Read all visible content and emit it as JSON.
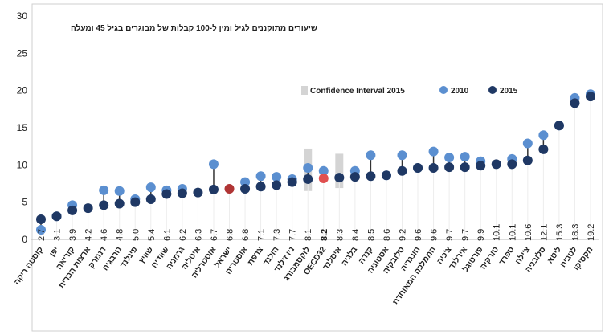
{
  "chart_data": {
    "type": "dot",
    "title": "שיעורים מתוקננים לגיל ומין ל-100 קבלות של מבוגרים בגיל 45 ומעלה",
    "ylim": [
      0,
      30
    ],
    "yticks": [
      0,
      5,
      10,
      15,
      20,
      25,
      30
    ],
    "categories": [
      "קוסטה ריקה",
      "יפן",
      "קוריאה",
      "ארצות הברית",
      "דנמרק",
      "נורבגיה",
      "פינלנד",
      "שוויץ",
      "שוודיה",
      "גרמניה",
      "איטליה",
      "אוסטרליה",
      "ישראל",
      "אוסטריה",
      "צרפת",
      "הולנד",
      "ניו זילנד",
      "לוקסמבורג",
      "OECD32",
      "איסלנד",
      "בלגיה",
      "קנדה",
      "אסטוניה",
      "סלובקיה",
      "הונגריה",
      "הממלכה המאוחדת",
      "צ'כיה",
      "אירלנד",
      "פורטוגל",
      "טורקיה",
      "ספרד",
      "צ'ילה",
      "סלובניה",
      "ליטא",
      "לטביה",
      "מקסיקו"
    ],
    "value_labels": [
      "2.7",
      "3.1",
      "3.9",
      "4.2",
      "4.6",
      "4.8",
      "5.0",
      "5.4",
      "6.1",
      "6.2",
      "6.3",
      "6.7",
      "6.8",
      "6.8",
      "7.1",
      "7.3",
      "7.7",
      "8.1",
      "8.2",
      "8.3",
      "8.4",
      "8.5",
      "8.6",
      "9.2",
      "9.6",
      "9.6",
      "9.7",
      "9.7",
      "9.9",
      "10.1",
      "10.1",
      "10.6",
      "12.1",
      "15.3",
      "18.3",
      "19.2"
    ],
    "series": [
      {
        "name": "2015",
        "color": "#1f3864",
        "values": [
          2.7,
          3.1,
          3.9,
          4.2,
          4.6,
          4.8,
          5.0,
          5.4,
          6.1,
          6.2,
          6.3,
          6.7,
          6.8,
          6.8,
          7.1,
          7.3,
          7.7,
          8.1,
          8.2,
          8.3,
          8.4,
          8.5,
          8.6,
          9.2,
          9.6,
          9.6,
          9.7,
          9.7,
          9.9,
          10.1,
          10.1,
          10.6,
          12.1,
          15.3,
          18.3,
          19.2
        ]
      },
      {
        "name": "2010",
        "color": "#5b8fd0",
        "values": [
          1.3,
          3.1,
          4.6,
          null,
          6.6,
          6.5,
          5.4,
          7.0,
          6.6,
          6.8,
          null,
          10.1,
          null,
          7.7,
          8.5,
          8.4,
          8.1,
          9.6,
          9.2,
          null,
          9.2,
          11.3,
          8.6,
          11.3,
          9.6,
          11.8,
          11.0,
          11.1,
          10.5,
          null,
          10.8,
          12.9,
          14.0,
          15.3,
          19.0,
          19.5
        ]
      }
    ],
    "highlights": {
      "ישראל": "#b03535",
      "OECD32": "#e05050"
    },
    "confidence_interval": {
      "name": "Confidence Interval 2015",
      "color": "#d4d4d4",
      "ranges": [
        {
          "category": "לוקסמבורג",
          "low": 6.5,
          "high": 12.2
        },
        {
          "category": "איסלנד",
          "low": 6.9,
          "high": 11.5
        }
      ]
    },
    "legend": [
      "Confidence Interval 2015",
      "2010",
      "2015"
    ]
  }
}
